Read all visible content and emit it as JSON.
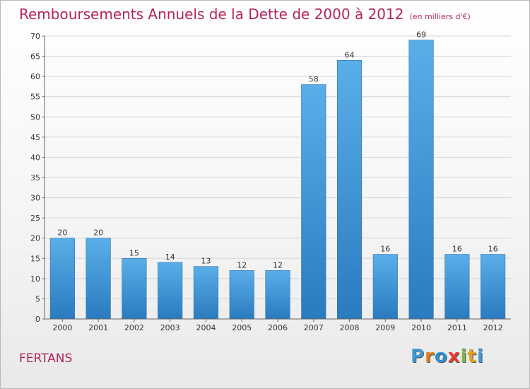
{
  "header": {
    "title": "Remboursements Annuels de la Dette de 2000 à 2012",
    "unit": "(en milliers d'€)"
  },
  "footer": {
    "town": "FERTANS",
    "logo_letters": [
      "P",
      "r",
      "o",
      "x",
      "i",
      "t",
      "i"
    ],
    "logo_colors": [
      "#3b9ad9",
      "#e07a1f",
      "#2b8fd0",
      "#e63b2e",
      "#7ab648",
      "#e0a21f",
      "#3b9ad9"
    ]
  },
  "chart_data": {
    "type": "bar",
    "categories": [
      "2000",
      "2001",
      "2002",
      "2003",
      "2004",
      "2005",
      "2006",
      "2007",
      "2008",
      "2009",
      "2010",
      "2011",
      "2012"
    ],
    "values": [
      20,
      20,
      15,
      14,
      13,
      12,
      12,
      58,
      64,
      16,
      69,
      16,
      16
    ],
    "data_labels": [
      "20",
      "20",
      "15",
      "14",
      "13",
      "12",
      "12",
      "58",
      "64",
      "16",
      "69",
      "16",
      "16"
    ],
    "title": "Remboursements Annuels de la Dette de 2000 à 2012",
    "ylim": [
      0,
      70
    ],
    "yticks": [
      0,
      5,
      10,
      15,
      20,
      25,
      30,
      35,
      40,
      45,
      50,
      55,
      60,
      65,
      70
    ],
    "ytick_labels": [
      "0",
      "5",
      "10",
      "15",
      "20",
      "25",
      "30",
      "35",
      "40",
      "45",
      "50",
      "55",
      "60",
      "65",
      "70"
    ],
    "grid": true,
    "bar_color_top": "#5aaee8",
    "bar_color_bottom": "#2a7bbf"
  }
}
